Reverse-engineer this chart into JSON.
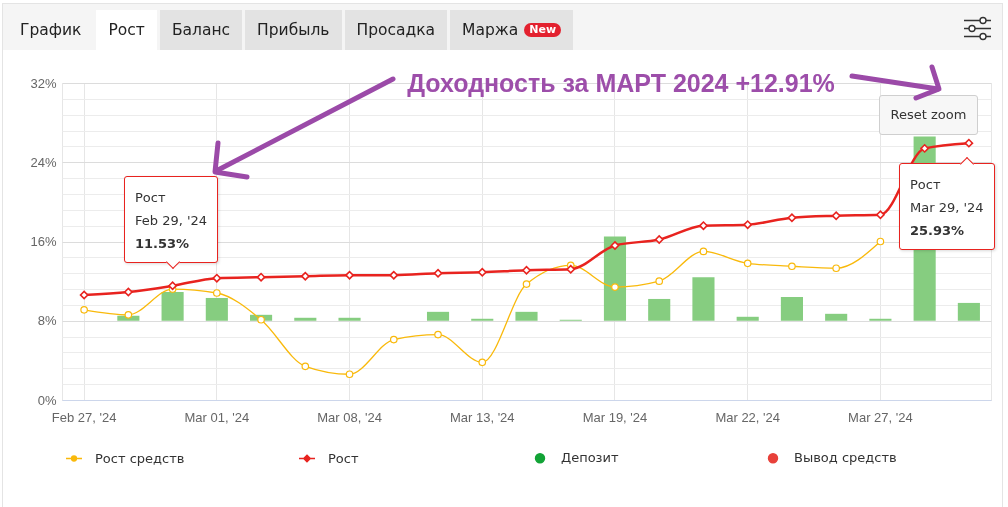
{
  "chart_data": {
    "type": "line",
    "title": "Доходность за МАРТ 2024 +12.91%",
    "categories": [
      "Feb 27, '24",
      null,
      null,
      "Mar 01, '24",
      null,
      null,
      "Mar 08, '24",
      null,
      null,
      "Mar 13, '24",
      null,
      null,
      "Mar 19, '24",
      null,
      null,
      "Mar 22, '24",
      null,
      null,
      "Mar 27, '24",
      null,
      null
    ],
    "series": [
      {
        "type": "bar",
        "color": "#86cd80",
        "base": [
          null,
          8,
          8,
          8,
          8,
          8,
          8,
          null,
          8,
          8,
          8,
          8,
          8,
          8,
          8,
          8,
          8,
          8,
          8,
          8,
          8
        ],
        "values": [
          null,
          0.5,
          2.9,
          2.3,
          0.6,
          0.3,
          0.3,
          null,
          0.9,
          0.2,
          0.9,
          0.1,
          8.5,
          2.2,
          4.4,
          0.4,
          2.4,
          0.7,
          0.2,
          18.6,
          1.8
        ]
      },
      {
        "name": "Рост средств",
        "color": "#f9b90b",
        "marker": "circle",
        "values": [
          9.1,
          8.6,
          11.2,
          10.8,
          8.1,
          3.4,
          2.6,
          6.1,
          6.6,
          3.8,
          11.7,
          13.6,
          11.4,
          12.0,
          15.0,
          13.8,
          13.5,
          13.3,
          16.0,
          null,
          null
        ]
      },
      {
        "name": "Рост",
        "color": "#e8231f",
        "marker": "diamond",
        "values": [
          10.6,
          10.9,
          11.53,
          12.3,
          12.4,
          12.5,
          12.6,
          12.6,
          12.8,
          12.9,
          13.1,
          13.2,
          15.6,
          16.2,
          17.6,
          17.7,
          18.4,
          18.6,
          18.7,
          25.4,
          25.93
        ]
      },
      {
        "type": "scatter",
        "name": "Депозит",
        "color": "#12a336",
        "marker": "circle",
        "values": [
          null,
          null,
          null,
          null,
          null,
          null,
          null,
          null,
          null,
          null,
          null,
          null,
          null,
          null,
          null,
          null,
          null,
          null,
          null,
          null,
          null
        ]
      },
      {
        "type": "scatter",
        "name": "Вывод средств",
        "color": "#e8413a",
        "marker": "circle",
        "values": [
          null,
          null,
          null,
          null,
          null,
          null,
          null,
          null,
          null,
          null,
          null,
          null,
          null,
          null,
          null,
          null,
          null,
          null,
          null,
          null,
          null
        ]
      }
    ],
    "ylim": [
      0,
      32
    ],
    "yticks": [
      {
        "value": 0,
        "label": "0%"
      },
      {
        "value": 1.6,
        "label": null
      },
      {
        "value": 3.2,
        "label": null
      },
      {
        "value": 4.8,
        "label": null
      },
      {
        "value": 6.4,
        "label": null
      },
      {
        "value": 8,
        "label": "8%"
      },
      {
        "value": 9.6,
        "label": null
      },
      {
        "value": 11.2,
        "label": null
      },
      {
        "value": 12.8,
        "label": null
      },
      {
        "value": 14.4,
        "label": null
      },
      {
        "value": 16,
        "label": "16%"
      },
      {
        "value": 17.6,
        "label": null
      },
      {
        "value": 19.2,
        "label": null
      },
      {
        "value": 20.8,
        "label": null
      },
      {
        "value": 22.4,
        "label": null
      },
      {
        "value": 24,
        "label": "24%"
      },
      {
        "value": 25.6,
        "label": null
      },
      {
        "value": 27.2,
        "label": null
      },
      {
        "value": 28.8,
        "label": null
      },
      {
        "value": 30.4,
        "label": null
      },
      {
        "value": 32,
        "label": "32%"
      }
    ],
    "grid": true,
    "legend": "bottom",
    "annotations": [
      "График",
      "Рост",
      "Баланс",
      "Прибыль",
      "Просадка",
      "Маржа",
      "New",
      "Reset zoom",
      "Рост\nFeb 29, '24\n11.53%",
      "Рост\nMar 29, '24\n25.93%"
    ]
  }
}
